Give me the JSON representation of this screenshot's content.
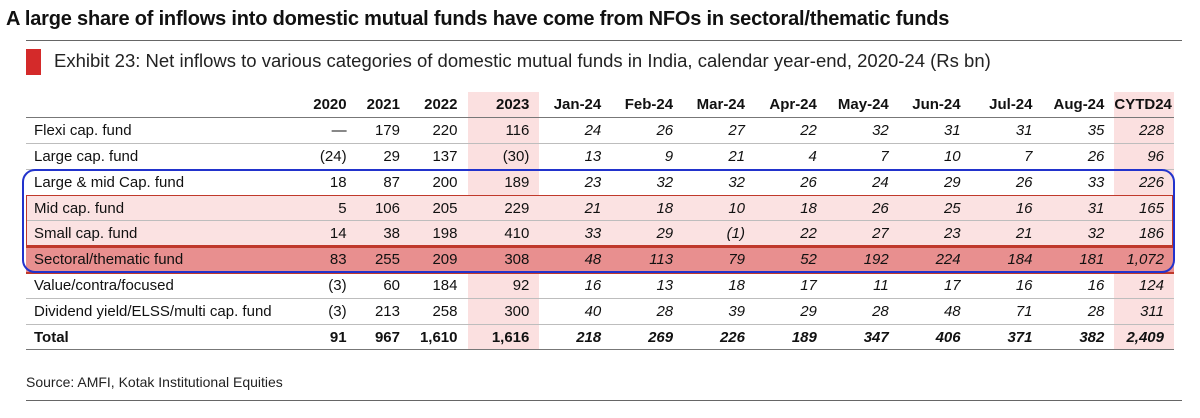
{
  "headline": "A large share of inflows into domestic mutual funds have come from NFOs in sectoral/thematic funds",
  "exhibit_title": "Exhibit 23: Net inflows to various categories of domestic mutual funds in India, calendar year-end, 2020-24 (Rs bn)",
  "source": "Source: AMFI, Kotak Institutional Equities",
  "colors": {
    "accent_red": "#d42a2a",
    "box_blue": "#2233cc",
    "highlight_pink": "#fbe0e0",
    "sectoral_fill": "#e88f8f",
    "box_red": "#c0392b"
  },
  "chart_data": {
    "type": "table",
    "title": "Exhibit 23: Net inflows to various categories of domestic mutual funds in India, calendar year-end, 2020-24 (Rs bn)",
    "columns": [
      "2020",
      "2021",
      "2022",
      "2023",
      "Jan-24",
      "Feb-24",
      "Mar-24",
      "Apr-24",
      "May-24",
      "Jun-24",
      "Jul-24",
      "Aug-24",
      "CYTD24"
    ],
    "rows": [
      {
        "label": "Flexi cap. fund",
        "values": [
          "—",
          "179",
          "220",
          "116",
          "24",
          "26",
          "27",
          "22",
          "32",
          "31",
          "31",
          "35",
          "228"
        ]
      },
      {
        "label": "Large cap. fund",
        "values": [
          "(24)",
          "29",
          "137",
          "(30)",
          "13",
          "9",
          "21",
          "4",
          "7",
          "10",
          "7",
          "26",
          "96"
        ]
      },
      {
        "label": "Large & mid Cap. fund",
        "values": [
          "18",
          "87",
          "200",
          "189",
          "23",
          "32",
          "32",
          "26",
          "24",
          "29",
          "26",
          "33",
          "226"
        ]
      },
      {
        "label": "Mid cap. fund",
        "values": [
          "5",
          "106",
          "205",
          "229",
          "21",
          "18",
          "10",
          "18",
          "26",
          "25",
          "16",
          "31",
          "165"
        ]
      },
      {
        "label": "Small cap. fund",
        "values": [
          "14",
          "38",
          "198",
          "410",
          "33",
          "29",
          "(1)",
          "22",
          "27",
          "23",
          "21",
          "32",
          "186"
        ]
      },
      {
        "label": "Sectoral/thematic fund",
        "values": [
          "83",
          "255",
          "209",
          "308",
          "48",
          "113",
          "79",
          "52",
          "192",
          "224",
          "184",
          "181",
          "1,072"
        ]
      },
      {
        "label": "Value/contra/focused",
        "values": [
          "(3)",
          "60",
          "184",
          "92",
          "16",
          "13",
          "18",
          "17",
          "11",
          "17",
          "16",
          "16",
          "124"
        ]
      },
      {
        "label": "Dividend yield/ELSS/multi cap. fund",
        "values": [
          "(3)",
          "213",
          "258",
          "300",
          "40",
          "28",
          "39",
          "29",
          "28",
          "48",
          "71",
          "28",
          "311"
        ]
      }
    ],
    "total": {
      "label": "Total",
      "values": [
        "91",
        "967",
        "1,610",
        "1,616",
        "218",
        "269",
        "226",
        "189",
        "347",
        "406",
        "371",
        "382",
        "2,409"
      ]
    }
  }
}
